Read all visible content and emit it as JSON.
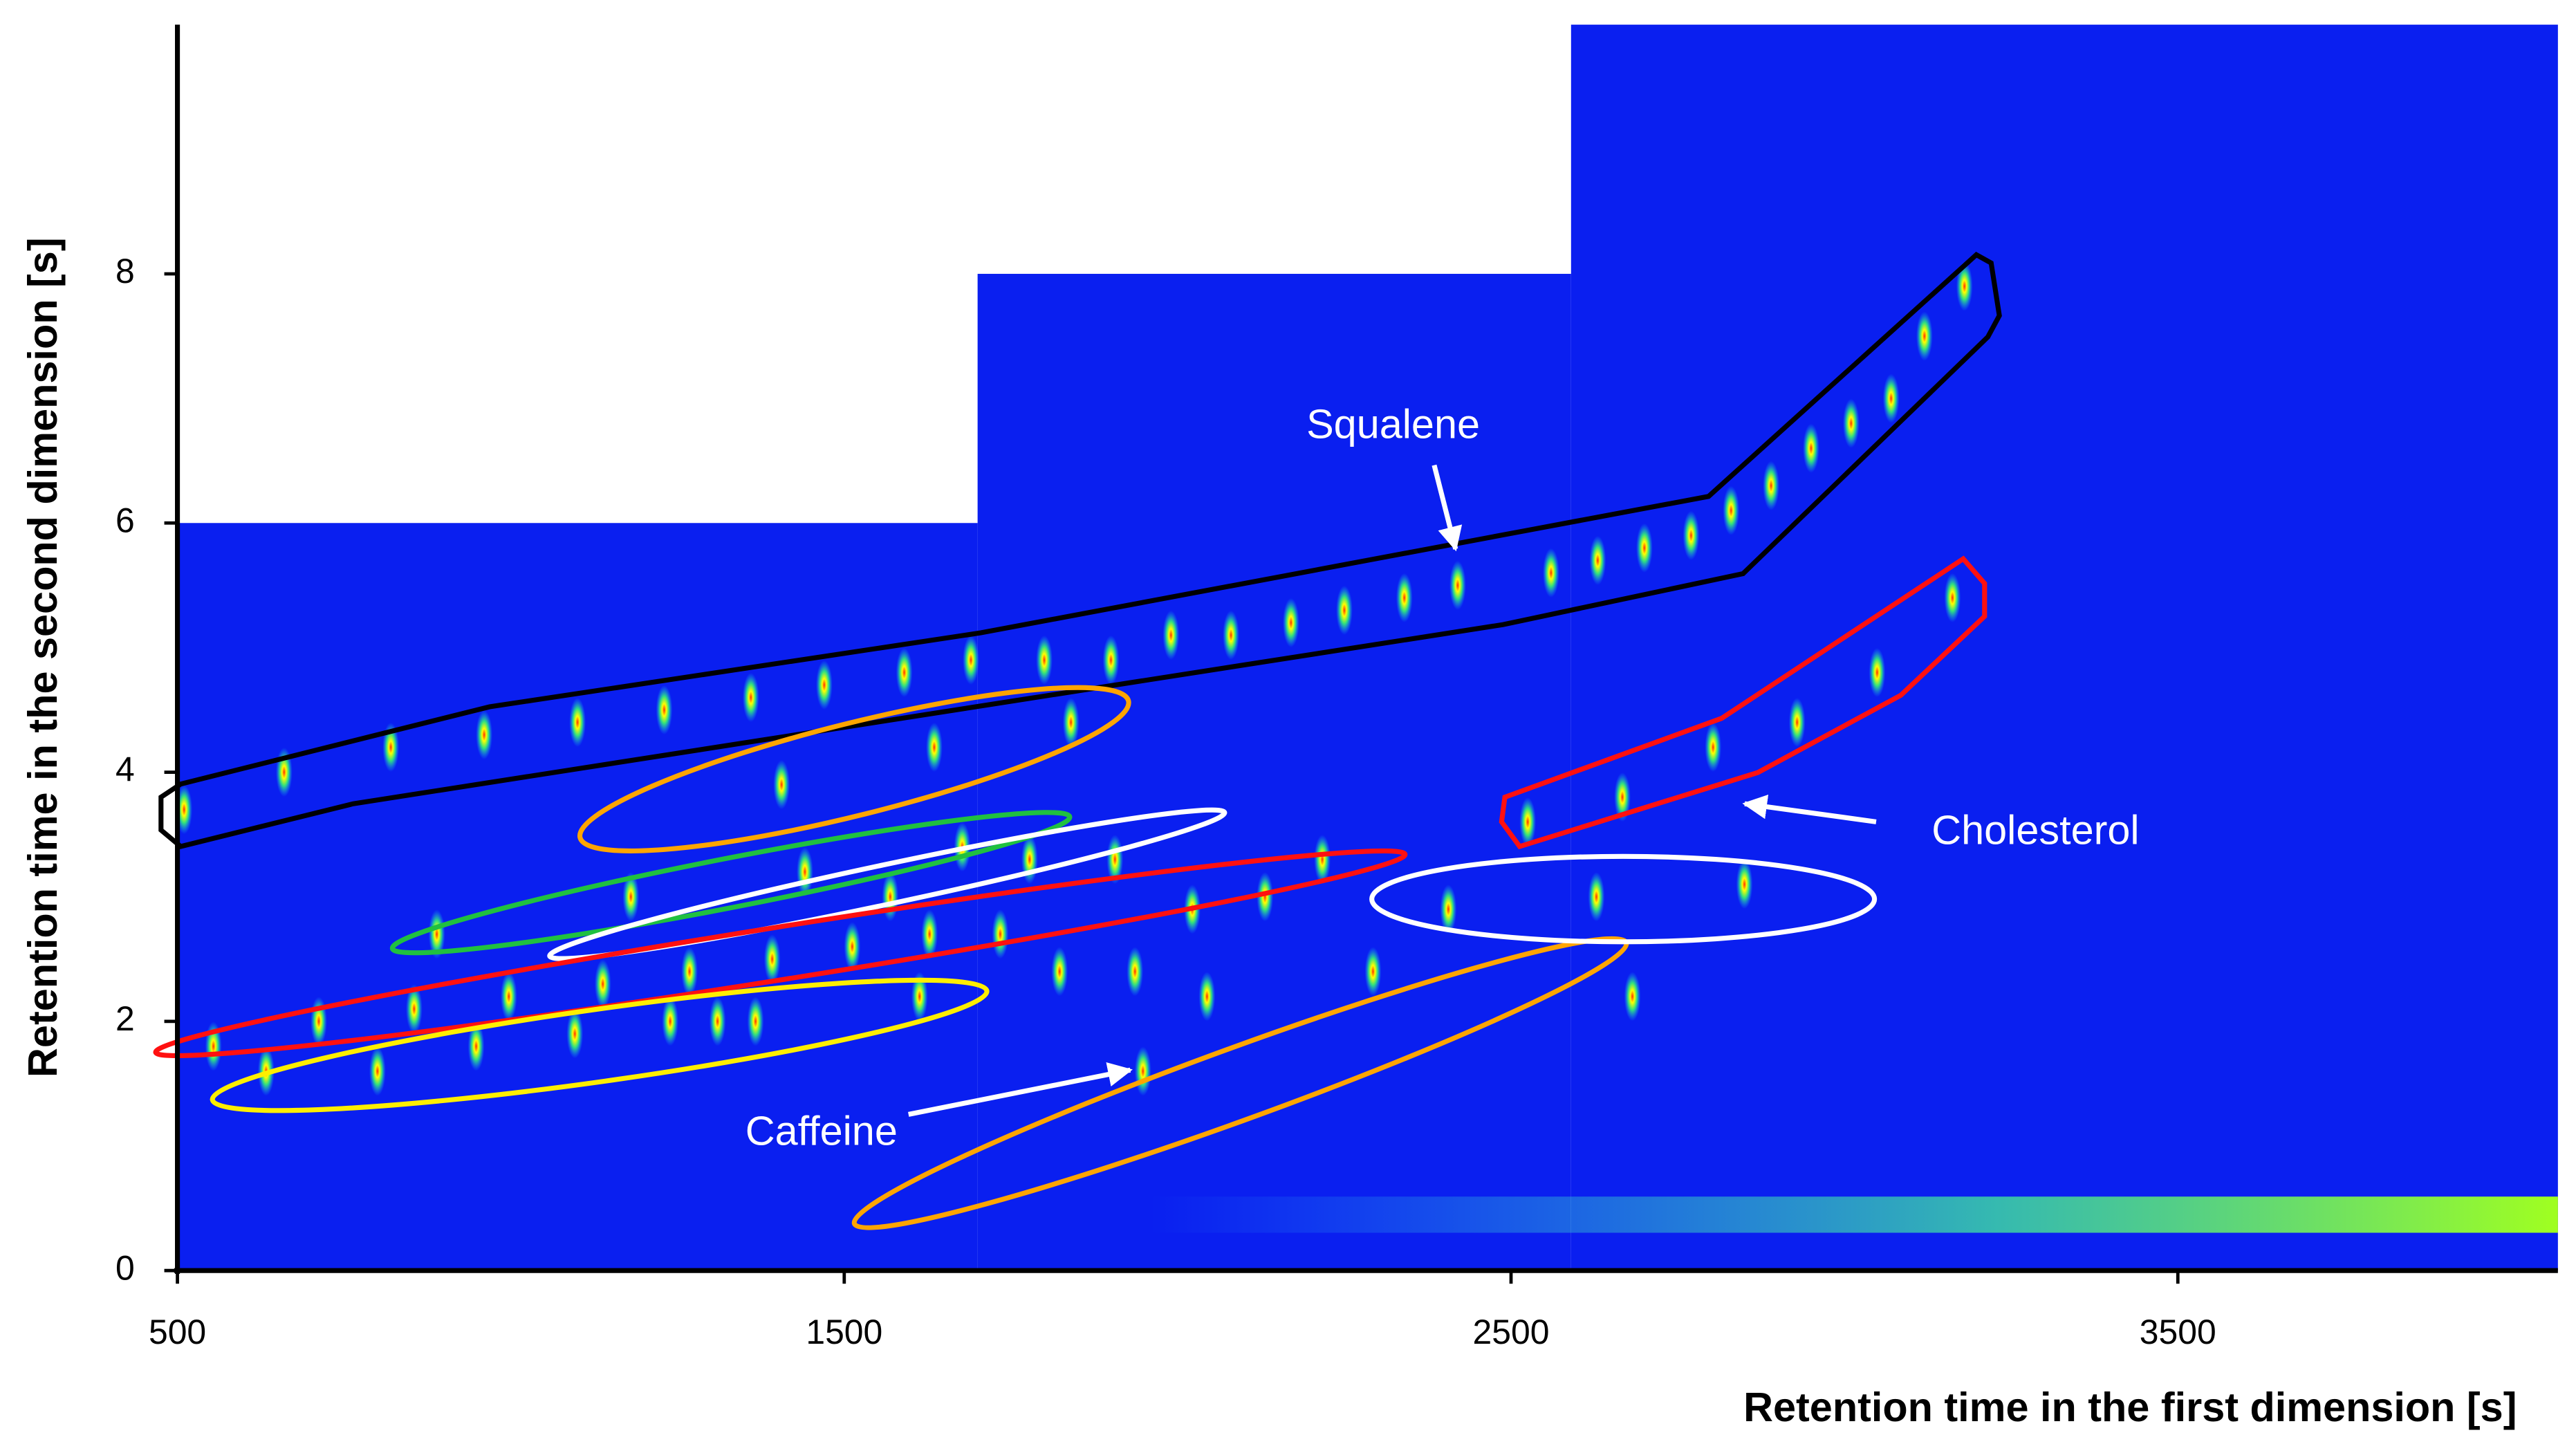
{
  "chart_data": {
    "type": "scatter",
    "x_label": "Retention time in the first dimension [s]",
    "y_label": "Retention time in the second dimension [s]",
    "annotations": [
      "Squalene",
      "Cholesterol",
      "Caffeine"
    ],
    "background_color": "#0a1ff0",
    "regions": [
      {
        "x": [
          500,
          1700
        ],
        "ymax": 6
      },
      {
        "x": [
          1700,
          2590
        ],
        "ymax": 8
      },
      {
        "x": [
          2590,
          4070
        ],
        "ymax": 10
      }
    ],
    "x": [
      510,
      660,
      820,
      960,
      1100,
      1230,
      1360,
      1470,
      1590,
      1690,
      1800,
      1900,
      1990,
      2080,
      2170,
      2250,
      2340,
      2420,
      2560,
      2630,
      2700,
      2770,
      2830,
      2890,
      2950,
      3010,
      3070,
      3120,
      3180,
      2525,
      2667,
      2803,
      2929,
      3049,
      3162,
      554,
      633,
      712,
      800,
      855,
      889,
      948,
      997,
      1096,
      1138,
      1180,
      1239,
      1268,
      1310,
      1367,
      1392,
      1406,
      1441,
      1512,
      1569,
      1613,
      1628,
      1635,
      1677,
      1734,
      1778,
      1823,
      1840,
      1906,
      1936,
      1948,
      2022,
      2044,
      2131,
      2217,
      2293,
      2406,
      2628,
      2682,
      2850
    ],
    "values": [
      3.7,
      4.0,
      4.2,
      4.3,
      4.4,
      4.5,
      4.6,
      4.7,
      4.8,
      4.9,
      4.9,
      4.9,
      5.1,
      5.1,
      5.2,
      5.3,
      5.4,
      5.5,
      5.6,
      5.7,
      5.8,
      5.9,
      6.1,
      6.3,
      6.6,
      6.8,
      7.0,
      7.5,
      7.9,
      3.6,
      3.8,
      4.2,
      4.4,
      4.8,
      5.4,
      1.8,
      1.6,
      2.0,
      1.6,
      2.1,
      2.7,
      1.8,
      2.2,
      1.9,
      2.3,
      3.0,
      2.0,
      2.4,
      2.0,
      2.0,
      2.5,
      3.9,
      3.2,
      2.6,
      3.0,
      2.2,
      2.7,
      4.2,
      3.4,
      2.7,
      3.3,
      2.4,
      4.4,
      3.3,
      2.4,
      1.6,
      2.9,
      2.2,
      3.0,
      3.3,
      2.4,
      2.9,
      3.0,
      2.2,
      3.1
    ],
    "xlim": [
      500,
      4070
    ],
    "ylim": [
      0,
      10
    ],
    "xticks": [
      500,
      1500,
      2500,
      3500
    ],
    "yticks": [
      0,
      2,
      4,
      6,
      8
    ]
  }
}
